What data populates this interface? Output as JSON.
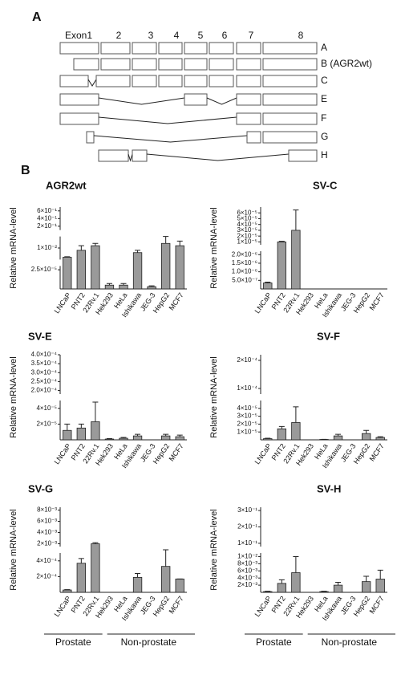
{
  "panel_labels": [
    "A",
    "B"
  ],
  "diagram": {
    "exon_labels": [
      "Exon1",
      "2",
      "3",
      "4",
      "5",
      "6",
      "7",
      "8"
    ],
    "rows": [
      "A",
      "B (AGR2wt)",
      "C",
      "E",
      "F",
      "G",
      "H"
    ]
  },
  "group_labels": [
    "Prostate",
    "Non-prostate"
  ],
  "chart_data": [
    {
      "type": "bar",
      "title": "AGR2wt",
      "y_label": "Relative mRNA-level",
      "color": "#9a9a9a",
      "categories": [
        "LNCaP",
        "PNT2",
        "22Rv.1",
        "Hek293",
        "HeLa",
        "Ishikawa",
        "JEG-3",
        "HepG2",
        "MCF7"
      ],
      "values": [
        0.006,
        0.009,
        0.011,
        5e-06,
        5e-06,
        0.008,
        3e-06,
        0.012,
        0.011
      ],
      "errors": [
        0.0002,
        0.002,
        0.001,
        2e-06,
        2e-06,
        0.001,
        1e-06,
        0.003,
        0.002
      ],
      "ylim": [
        0,
        0.7
      ],
      "y_breaks": [
        [
          3e-05,
          0.005
        ],
        [
          0.015,
          0.1
        ]
      ],
      "yticks": [
        {
          "value": 2.5e-05,
          "label": "2.5×10⁻⁵"
        },
        {
          "value": 0.01,
          "label": "1×10⁻²"
        },
        {
          "value": 0.2,
          "label": "2×10⁻¹"
        },
        {
          "value": 0.4,
          "label": "4×10⁻¹"
        },
        {
          "value": 0.6,
          "label": "6×10⁻¹"
        }
      ]
    },
    {
      "type": "bar",
      "title": "SV-C",
      "y_label": "Relative mRNA-level",
      "color": "#9a9a9a",
      "categories": [
        "LNCaP",
        "PNT2",
        "22Rv.1",
        "Hek293",
        "HeLa",
        "Ishikawa",
        "JEG-3",
        "HepG2",
        "MCF7"
      ],
      "values": [
        3.5e-07,
        1e-05,
        3e-05,
        0,
        0,
        0,
        0,
        0,
        0
      ],
      "errors": [
        5e-08,
        1e-06,
        3.5e-05,
        0,
        0,
        0,
        0,
        0,
        0
      ],
      "ylim": [
        0,
        7e-05
      ],
      "y_breaks": [
        [
          2.2e-06,
          5e-06
        ]
      ],
      "yticks": [
        {
          "value": 5e-07,
          "label": "5.0×10⁻⁷"
        },
        {
          "value": 1e-06,
          "label": "1.0×10⁻⁶"
        },
        {
          "value": 1.5e-06,
          "label": "1.5×10⁻⁶"
        },
        {
          "value": 2e-06,
          "label": "2.0×10⁻⁶"
        },
        {
          "value": 1e-05,
          "label": "1×10⁻⁵"
        },
        {
          "value": 2e-05,
          "label": "2×10⁻⁵"
        },
        {
          "value": 3e-05,
          "label": "3×10⁻⁵"
        },
        {
          "value": 4e-05,
          "label": "4×10⁻⁵"
        },
        {
          "value": 5e-05,
          "label": "5×10⁻⁵"
        },
        {
          "value": 6e-05,
          "label": "6×10⁻⁵"
        }
      ]
    },
    {
      "type": "bar",
      "title": "SV-E",
      "y_label": "Relative  mRNA-level",
      "color": "#9a9a9a",
      "categories": [
        "LNCaP",
        "PNT2",
        "22Rv.1",
        "Hek293",
        "HeLa",
        "Ishikawa",
        "JEG-3",
        "HepG2",
        "MCF7"
      ],
      "values": [
        1.2e-05,
        1.5e-05,
        2.3e-05,
        1e-06,
        2e-06,
        5e-06,
        0,
        5e-06,
        4e-06
      ],
      "errors": [
        8e-06,
        5e-06,
        2.5e-05,
        5e-07,
        1e-06,
        2e-06,
        0,
        2e-06,
        2e-06
      ],
      "ylim": [
        0,
        0.0004
      ],
      "y_breaks": [
        [
          5e-05,
          0.00018
        ]
      ],
      "yticks": [
        {
          "value": 2e-05,
          "label": "2×10⁻⁵"
        },
        {
          "value": 4e-05,
          "label": "4×10⁻⁵"
        },
        {
          "value": 0.0002,
          "label": "2.0×10⁻⁴"
        },
        {
          "value": 0.00025,
          "label": "2.5×10⁻⁴"
        },
        {
          "value": 0.0003,
          "label": "3.0×10⁻⁴"
        },
        {
          "value": 0.00035,
          "label": "3.5×10⁻⁴"
        },
        {
          "value": 0.0004,
          "label": "4.0×10⁻⁴"
        }
      ]
    },
    {
      "type": "bar",
      "title": "SV-F",
      "y_label": "Relative  mRNA-level",
      "color": "#9a9a9a",
      "categories": [
        "LNCaP",
        "PNT2",
        "22Rv.1",
        "Hek293",
        "HeLa",
        "Ishikawa",
        "JEG-3",
        "HepG2",
        "MCF7"
      ],
      "values": [
        1.5e-06,
        1.4e-05,
        2.2e-05,
        0,
        5e-07,
        5e-06,
        0,
        8e-06,
        3e-06
      ],
      "errors": [
        5e-07,
        3e-06,
        2e-05,
        0,
        2e-07,
        2e-06,
        0,
        4e-06,
        1e-06
      ],
      "ylim": [
        0,
        0.00022
      ],
      "y_breaks": [
        [
          5e-05,
          8e-05
        ]
      ],
      "yticks": [
        {
          "value": 1e-05,
          "label": "1×10⁻⁵"
        },
        {
          "value": 2e-05,
          "label": "2×10⁻⁵"
        },
        {
          "value": 3e-05,
          "label": "3×10⁻⁵"
        },
        {
          "value": 4e-05,
          "label": "4×10⁻⁵"
        },
        {
          "value": 0.0001,
          "label": "1×10⁻⁴"
        },
        {
          "value": 0.0002,
          "label": "2×10⁻⁴"
        }
      ]
    },
    {
      "type": "bar",
      "title": "SV-G",
      "y_label": "Relative  mRNA-level",
      "color": "#9a9a9a",
      "categories": [
        "LNCaP",
        "PNT2",
        "22Rv.1",
        "Hek293",
        "HeLa",
        "Ishikawa",
        "JEG-3",
        "HepG2",
        "MCF7"
      ],
      "values": [
        3e-05,
        0.00037,
        0.002,
        0,
        0,
        0.00019,
        0,
        0.00033,
        0.00017
      ],
      "errors": [
        5e-06,
        6e-05,
        0.0002,
        0,
        0,
        5e-05,
        0,
        0.00018,
        0
      ],
      "ylim": [
        0,
        0.0085
      ],
      "y_breaks": [
        [
          0.0005,
          0.0015
        ]
      ],
      "yticks": [
        {
          "value": 0.0002,
          "label": "2×10⁻⁴"
        },
        {
          "value": 0.0004,
          "label": "4×10⁻⁴"
        },
        {
          "value": 0.002,
          "label": "2×10⁻³"
        },
        {
          "value": 0.004,
          "label": "4×10⁻³"
        },
        {
          "value": 0.006,
          "label": "6×10⁻³"
        },
        {
          "value": 0.008,
          "label": "8×10⁻³"
        }
      ]
    },
    {
      "type": "bar",
      "title": "SV-H",
      "y_label": "Relative  mRNA-level",
      "color": "#9a9a9a",
      "categories": [
        "LNCaP",
        "PNT2",
        "22Rv.1",
        "Hek293",
        "HeLa",
        "Ishikawa",
        "JEG-3",
        "HepG2",
        "MCF7"
      ],
      "values": [
        0.0002,
        0.0025,
        0.0055,
        0,
        0.0002,
        0.002,
        0,
        0.003,
        0.0037
      ],
      "errors": [
        0.0001,
        0.001,
        0.0045,
        0,
        0.0001,
        0.0008,
        0,
        0.0015,
        0.0025
      ],
      "ylim": [
        0,
        0.32
      ],
      "y_breaks": [
        [
          0.011,
          0.08
        ]
      ],
      "yticks": [
        {
          "value": 0.002,
          "label": "2×10⁻³"
        },
        {
          "value": 0.004,
          "label": "4×10⁻³"
        },
        {
          "value": 0.006,
          "label": "6×10⁻³"
        },
        {
          "value": 0.008,
          "label": "8×10⁻³"
        },
        {
          "value": 0.01,
          "label": "1×10⁻²"
        },
        {
          "value": 0.1,
          "label": "1×10⁻¹"
        },
        {
          "value": 0.2,
          "label": "2×10⁻¹"
        },
        {
          "value": 0.3,
          "label": "3×10⁻¹"
        }
      ]
    }
  ]
}
